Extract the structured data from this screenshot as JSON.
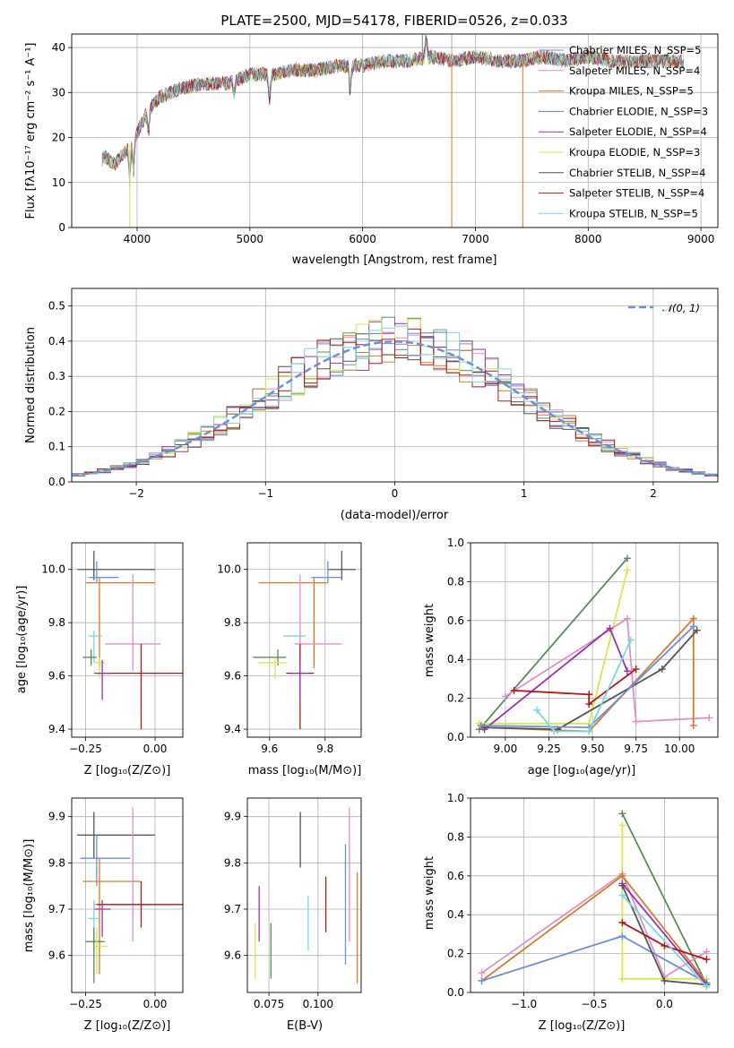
{
  "colors": {
    "chabrier_miles": "#6a8fdc",
    "salpeter_miles": "#e08fc6",
    "kroupa_miles": "#d97a2b",
    "chabrier_elodie": "#5a8a5a",
    "salpeter_elodie": "#9d2fb0",
    "kroupa_elodie": "#d6e84a",
    "chabrier_stelib": "#555555",
    "salpeter_stelib": "#b01818",
    "kroupa_stelib": "#7dd6e0",
    "gaussian": "#6a8fdc",
    "grid": "#b0b0b0"
  },
  "chart_data": [
    {
      "id": "spectrum",
      "type": "line",
      "title": "PLATE=2500, MJD=54178, FIBERID=0526, z=0.033",
      "xlabel": "wavelength [Angstrom, rest frame]",
      "ylabel": "Flux [fλ10⁻¹⁷ erg cm⁻² s⁻¹ A⁻¹]",
      "xlim": [
        3420,
        9150
      ],
      "ylim": [
        0,
        43
      ],
      "xticks": [
        4000,
        5000,
        6000,
        7000,
        8000,
        9000
      ],
      "yticks": [
        0,
        10,
        20,
        30,
        40
      ],
      "legend_position": "upper-right",
      "series": [
        {
          "name": "Chabrier MILES, N_SSP=5",
          "key": "chabrier_miles"
        },
        {
          "name": "Salpeter MILES, N_SSP=4",
          "key": "salpeter_miles"
        },
        {
          "name": "Kroupa MILES, N_SSP=5",
          "key": "kroupa_miles"
        },
        {
          "name": "Chabrier ELODIE, N_SSP=3",
          "key": "chabrier_elodie"
        },
        {
          "name": "Salpeter ELODIE, N_SSP=4",
          "key": "salpeter_elodie"
        },
        {
          "name": "Kroupa ELODIE, N_SSP=3",
          "key": "kroupa_elodie"
        },
        {
          "name": "Chabrier STELIB, N_SSP=4",
          "key": "chabrier_stelib"
        },
        {
          "name": "Salpeter STELIB, N_SSP=4",
          "key": "salpeter_stelib"
        },
        {
          "name": "Kroupa STELIB, N_SSP=5",
          "key": "kroupa_stelib"
        }
      ],
      "continuum": {
        "x": [
          3680,
          3700,
          3800,
          3900,
          4000,
          4100,
          4200,
          4400,
          4600,
          4800,
          5000,
          5200,
          5400,
          5600,
          5800,
          6000,
          6200,
          6400,
          6600,
          6800,
          7000,
          7200,
          7400,
          7600,
          7800,
          8000,
          8200,
          8400,
          8600,
          8850
        ],
        "y": [
          14,
          16,
          14,
          17,
          21,
          26,
          29,
          31,
          32,
          32,
          34,
          34,
          35,
          35,
          36,
          36,
          37,
          37,
          38,
          37,
          38,
          37,
          37,
          38,
          37,
          38,
          37,
          37,
          37,
          37
        ]
      }
    },
    {
      "id": "residuals",
      "type": "line",
      "xlabel": "(data-model)/error",
      "ylabel": "Normed distribution",
      "xlim": [
        -2.5,
        2.5
      ],
      "ylim": [
        0,
        0.55
      ],
      "xticks": [
        -2,
        -1,
        0,
        1,
        2
      ],
      "yticks": [
        0.0,
        0.1,
        0.2,
        0.3,
        0.4,
        0.5
      ],
      "legend_position": "upper-right",
      "gaussian_label": "𝒩(0, 1)",
      "bin_width": 0.1
    },
    {
      "id": "age-vs-z",
      "type": "scatter",
      "xlabel": "Z [log₁₀(Z/Z⊙)]",
      "ylabel": "age  [log₁₀(age/yr)]",
      "xlim": [
        -0.3,
        0.1
      ],
      "ylim": [
        9.37,
        10.1
      ],
      "xticks": [
        -0.25,
        0.0
      ],
      "yticks": [
        9.4,
        9.6,
        9.8,
        10.0
      ],
      "points": [
        {
          "key": "chabrier_stelib",
          "x": -0.22,
          "xe": [
            0.06,
            0.22
          ],
          "y": 10.0,
          "ye": [
            0.04,
            0.07
          ]
        },
        {
          "key": "chabrier_miles",
          "x": -0.21,
          "xe": [
            0.03,
            0.08
          ],
          "y": 9.97,
          "ye": [
            0.02,
            0.06
          ]
        },
        {
          "key": "kroupa_miles",
          "x": -0.2,
          "xe": [
            0.05,
            0.2
          ],
          "y": 9.95,
          "ye": [
            0.32,
            0.02
          ]
        },
        {
          "key": "kroupa_stelib",
          "x": -0.22,
          "xe": [
            0.02,
            0.03
          ],
          "y": 9.75,
          "ye": [
            0.1,
            0.02
          ]
        },
        {
          "key": "salpeter_miles",
          "x": -0.08,
          "xe": [
            0.1,
            0.1
          ],
          "y": 9.72,
          "ye": [
            0.1,
            0.26
          ]
        },
        {
          "key": "chabrier_elodie",
          "x": -0.23,
          "xe": [
            0.03,
            0.02
          ],
          "y": 9.67,
          "ye": [
            0.03,
            0.03
          ]
        },
        {
          "key": "kroupa_elodie",
          "x": -0.2,
          "xe": [
            0.02,
            0.02
          ],
          "y": 9.65,
          "ye": [
            0.06,
            0.02
          ]
        },
        {
          "key": "salpeter_stelib",
          "x": -0.05,
          "xe": [
            0.16,
            0.16
          ],
          "y": 9.61,
          "ye": [
            0.21,
            0.11
          ]
        },
        {
          "key": "salpeter_elodie",
          "x": -0.19,
          "xe": [
            0.03,
            0.03
          ],
          "y": 9.61,
          "ye": [
            0.1,
            0.05
          ]
        }
      ]
    },
    {
      "id": "age-vs-mass",
      "type": "scatter",
      "xlabel": "mass [log₁₀(M/M⊙)]",
      "xlim": [
        9.52,
        9.93
      ],
      "ylim": [
        9.37,
        10.1
      ],
      "xticks": [
        9.6,
        9.8
      ],
      "yticks": [
        9.4,
        9.6,
        9.8,
        10.0
      ],
      "points": [
        {
          "key": "chabrier_stelib",
          "x": 9.86,
          "xe": [
            0.05,
            0.05
          ],
          "y": 10.0,
          "ye": [
            0.04,
            0.07
          ]
        },
        {
          "key": "chabrier_miles",
          "x": 9.81,
          "xe": [
            0.06,
            0.05
          ],
          "y": 9.97,
          "ye": [
            0.02,
            0.06
          ]
        },
        {
          "key": "kroupa_miles",
          "x": 9.76,
          "xe": [
            0.2,
            0.05
          ],
          "y": 9.95,
          "ye": [
            0.32,
            0.02
          ]
        },
        {
          "key": "kroupa_stelib",
          "x": 9.71,
          "xe": [
            0.06,
            0.02
          ],
          "y": 9.75,
          "ye": [
            0.1,
            0.02
          ]
        },
        {
          "key": "salpeter_miles",
          "x": 9.71,
          "xe": [
            0.02,
            0.15
          ],
          "y": 9.72,
          "ye": [
            0.1,
            0.26
          ]
        },
        {
          "key": "chabrier_elodie",
          "x": 9.63,
          "xe": [
            0.09,
            0.03
          ],
          "y": 9.67,
          "ye": [
            0.03,
            0.03
          ]
        },
        {
          "key": "kroupa_elodie",
          "x": 9.62,
          "xe": [
            0.06,
            0.04
          ],
          "y": 9.65,
          "ye": [
            0.06,
            0.02
          ]
        },
        {
          "key": "salpeter_stelib",
          "x": 9.71,
          "xe": [
            0.05,
            0.05
          ],
          "y": 9.61,
          "ye": [
            0.21,
            0.11
          ]
        },
        {
          "key": "salpeter_elodie",
          "x": 9.71,
          "xe": [
            0.03,
            0.03
          ],
          "y": 9.61,
          "ye": [
            0.1,
            0.05
          ]
        }
      ]
    },
    {
      "id": "weight-vs-age",
      "type": "line",
      "xlabel": "age  [log₁₀(age/yr)]",
      "ylabel": "mass weight",
      "xlim": [
        8.8,
        10.22
      ],
      "ylim": [
        0,
        1.0
      ],
      "xticks": [
        9.0,
        9.25,
        9.5,
        9.75,
        10.0
      ],
      "yticks": [
        0.0,
        0.2,
        0.4,
        0.6,
        0.8,
        1.0
      ],
      "series": [
        {
          "key": "chabrier_elodie",
          "x": [
            8.85,
            9.7
          ],
          "y": [
            0.04,
            0.92
          ]
        },
        {
          "key": "kroupa_elodie",
          "x": [
            8.85,
            9.48,
            9.7
          ],
          "y": [
            0.07,
            0.07,
            0.86
          ]
        },
        {
          "key": "salpeter_miles",
          "x": [
            9.0,
            9.7,
            9.75,
            10.17
          ],
          "y": [
            0.21,
            0.61,
            0.08,
            0.1
          ]
        },
        {
          "key": "kroupa_miles",
          "x": [
            8.87,
            9.48,
            10.08,
            10.08
          ],
          "y": [
            0.05,
            0.03,
            0.61,
            0.06
          ]
        },
        {
          "key": "salpeter_elodie",
          "x": [
            8.88,
            9.6,
            9.7
          ],
          "y": [
            0.04,
            0.56,
            0.34
          ]
        },
        {
          "key": "chabrier_stelib",
          "x": [
            8.88,
            9.3,
            9.9,
            10.1
          ],
          "y": [
            0.05,
            0.04,
            0.35,
            0.55
          ]
        },
        {
          "key": "chabrier_miles",
          "x": [
            8.86,
            9.48,
            10.08
          ],
          "y": [
            0.06,
            0.05,
            0.57
          ]
        },
        {
          "key": "salpeter_stelib",
          "x": [
            9.05,
            9.48,
            9.48,
            9.75
          ],
          "y": [
            0.24,
            0.22,
            0.17,
            0.35
          ]
        },
        {
          "key": "kroupa_stelib",
          "x": [
            9.18,
            9.28,
            9.48,
            9.72
          ],
          "y": [
            0.14,
            0.03,
            0.03,
            0.5
          ]
        }
      ]
    },
    {
      "id": "mass-vs-z",
      "type": "scatter",
      "xlabel": "Z [log₁₀(Z/Z⊙)]",
      "ylabel": "mass [log₁₀(M/M⊙)]",
      "xlim": [
        -0.3,
        0.1
      ],
      "ylim": [
        9.52,
        9.94
      ],
      "xticks": [
        -0.25,
        0.0
      ],
      "yticks": [
        9.6,
        9.7,
        9.8,
        9.9
      ],
      "points": [
        {
          "key": "chabrier_stelib",
          "x": -0.22,
          "xe": [
            0.06,
            0.22
          ],
          "y": 9.86,
          "ye": [
            0.05,
            0.05
          ]
        },
        {
          "key": "chabrier_miles",
          "x": -0.21,
          "xe": [
            0.06,
            0.12
          ],
          "y": 9.81,
          "ye": [
            0.06,
            0.05
          ]
        },
        {
          "key": "kroupa_miles",
          "x": -0.2,
          "xe": [
            0.06,
            0.15
          ],
          "y": 9.76,
          "ye": [
            0.2,
            0.05
          ]
        },
        {
          "key": "salpeter_miles",
          "x": -0.08,
          "xe": [
            0.14,
            0.09
          ],
          "y": 9.71,
          "ye": [
            0.08,
            0.21
          ]
        },
        {
          "key": "salpeter_stelib",
          "x": -0.05,
          "xe": [
            0.16,
            0.16
          ],
          "y": 9.71,
          "ye": [
            0.05,
            0.05
          ]
        },
        {
          "key": "salpeter_elodie",
          "x": -0.19,
          "xe": [
            0.03,
            0.03
          ],
          "y": 9.7,
          "ye": [
            0.06,
            0.02
          ]
        },
        {
          "key": "kroupa_stelib",
          "x": -0.22,
          "xe": [
            0.02,
            0.02
          ],
          "y": 9.68,
          "ye": [
            0.07,
            0.04
          ]
        },
        {
          "key": "chabrier_elodie",
          "x": -0.22,
          "xe": [
            0.03,
            0.04
          ],
          "y": 9.63,
          "ye": [
            0.09,
            0.03
          ]
        },
        {
          "key": "kroupa_elodie",
          "x": -0.21,
          "xe": [
            0.01,
            0.04
          ],
          "y": 9.62,
          "ye": [
            0.06,
            0.04
          ]
        }
      ]
    },
    {
      "id": "mass-vs-ebv",
      "type": "scatter",
      "xlabel": "E(B-V)",
      "xlim": [
        0.064,
        0.122
      ],
      "ylim": [
        9.52,
        9.94
      ],
      "xticks": [
        0.075,
        0.1
      ],
      "yticks": [
        9.6,
        9.7,
        9.8,
        9.9
      ],
      "points": [
        {
          "key": "kroupa_elodie",
          "x": 0.068,
          "y": 9.61,
          "ye": [
            0.06,
            0.06
          ]
        },
        {
          "key": "salpeter_elodie",
          "x": 0.07,
          "y": 9.69,
          "ye": [
            0.06,
            0.06
          ]
        },
        {
          "key": "chabrier_elodie",
          "x": 0.076,
          "y": 9.61,
          "ye": [
            0.06,
            0.06
          ]
        },
        {
          "key": "chabrier_stelib",
          "x": 0.091,
          "y": 9.85,
          "ye": [
            0.06,
            0.06
          ]
        },
        {
          "key": "kroupa_stelib",
          "x": 0.095,
          "y": 9.67,
          "ye": [
            0.06,
            0.06
          ]
        },
        {
          "key": "salpeter_stelib",
          "x": 0.104,
          "y": 9.71,
          "ye": [
            0.06,
            0.06
          ]
        },
        {
          "key": "chabrier_miles",
          "x": 0.114,
          "y": 9.71,
          "ye": [
            0.13,
            0.13
          ]
        },
        {
          "key": "salpeter_miles",
          "x": 0.116,
          "y": 9.77,
          "ye": [
            0.14,
            0.15
          ]
        },
        {
          "key": "kroupa_miles",
          "x": 0.12,
          "y": 9.66,
          "ye": [
            0.12,
            0.12
          ]
        }
      ]
    },
    {
      "id": "weight-vs-z",
      "type": "line",
      "xlabel": "Z [log₁₀(Z/Z⊙)]",
      "ylabel": "mass weight",
      "xlim": [
        -1.38,
        0.38
      ],
      "ylim": [
        0,
        1.0
      ],
      "xticks": [
        -1.0,
        -0.5,
        0.0
      ],
      "yticks": [
        0.0,
        0.2,
        0.4,
        0.6,
        0.8,
        1.0
      ],
      "series": [
        {
          "key": "chabrier_elodie",
          "x": [
            -0.3,
            0.3
          ],
          "y": [
            0.92,
            0.04
          ]
        },
        {
          "key": "kroupa_elodie",
          "x": [
            -0.3,
            -0.3,
            0.3
          ],
          "y": [
            0.86,
            0.07,
            0.07
          ]
        },
        {
          "key": "salpeter_miles",
          "x": [
            -1.3,
            -0.3,
            0.0,
            0.3
          ],
          "y": [
            0.1,
            0.61,
            0.08,
            0.21
          ]
        },
        {
          "key": "kroupa_miles",
          "x": [
            -1.3,
            -0.3,
            0.3
          ],
          "y": [
            0.06,
            0.6,
            0.05
          ]
        },
        {
          "key": "chabrier_miles",
          "x": [
            -1.3,
            -0.3,
            0.3
          ],
          "y": [
            0.06,
            0.29,
            0.05
          ]
        },
        {
          "key": "salpeter_elodie",
          "x": [
            -0.3,
            0.3
          ],
          "y": [
            0.56,
            0.04
          ]
        },
        {
          "key": "chabrier_stelib",
          "x": [
            -0.3,
            0.0,
            0.3
          ],
          "y": [
            0.55,
            0.06,
            0.04
          ]
        },
        {
          "key": "salpeter_stelib",
          "x": [
            -0.3,
            0.0,
            0.3
          ],
          "y": [
            0.36,
            0.24,
            0.17
          ]
        },
        {
          "key": "kroupa_stelib",
          "x": [
            -0.3,
            0.3
          ],
          "y": [
            0.5,
            0.03
          ]
        }
      ]
    }
  ]
}
